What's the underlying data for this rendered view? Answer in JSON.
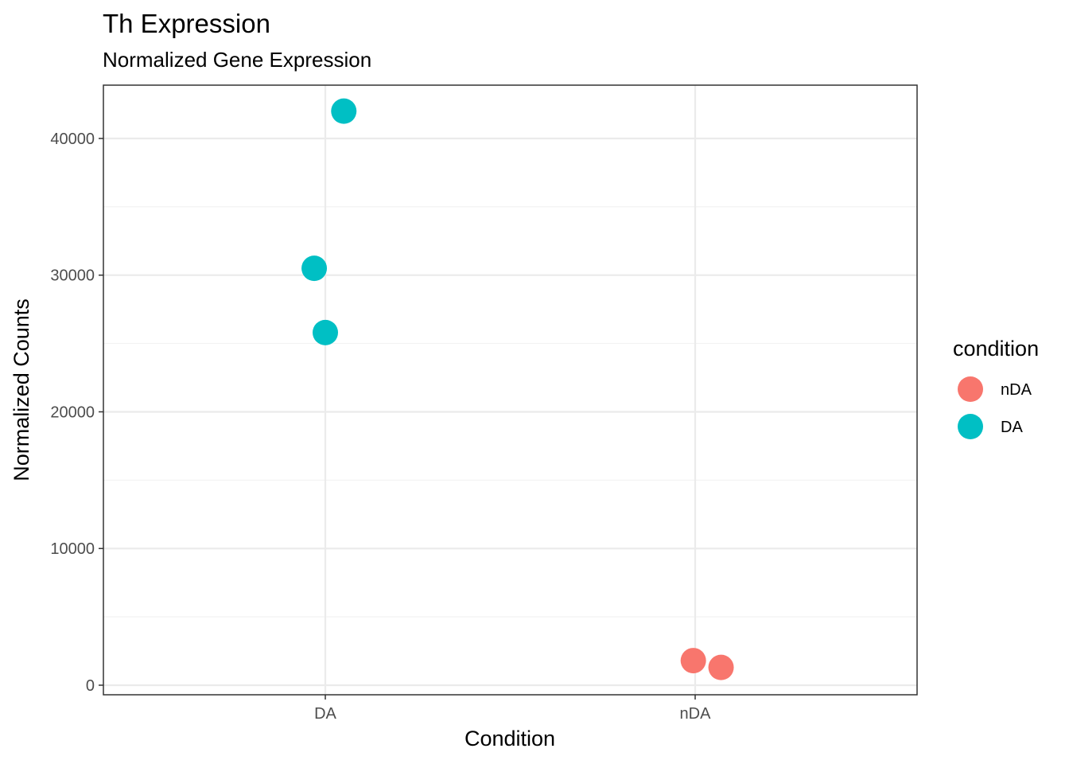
{
  "chart_data": {
    "type": "scatter",
    "title": "Th Expression",
    "subtitle": "Normalized Gene Expression",
    "xlabel": "Condition",
    "ylabel": "Normalized Counts",
    "categories": [
      "DA",
      "nDA"
    ],
    "ylim": [
      -700,
      43900
    ],
    "yticks": [
      0,
      10000,
      20000,
      30000,
      40000
    ],
    "grid": true,
    "legend": {
      "title": "condition",
      "position": "right",
      "entries": [
        {
          "label": "nDA",
          "color": "#F8766D"
        },
        {
          "label": "DA",
          "color": "#00BFC4"
        }
      ]
    },
    "series": [
      {
        "name": "nDA",
        "color": "#F8766D",
        "points": [
          {
            "x": "nDA",
            "jitter": -0.005,
            "y": 1800
          },
          {
            "x": "nDA",
            "jitter": 0.07,
            "y": 1300
          }
        ]
      },
      {
        "name": "DA",
        "color": "#00BFC4",
        "points": [
          {
            "x": "DA",
            "jitter": 0.05,
            "y": 42000
          },
          {
            "x": "DA",
            "jitter": -0.03,
            "y": 30500
          },
          {
            "x": "DA",
            "jitter": 0.0,
            "y": 25800
          }
        ]
      }
    ]
  }
}
